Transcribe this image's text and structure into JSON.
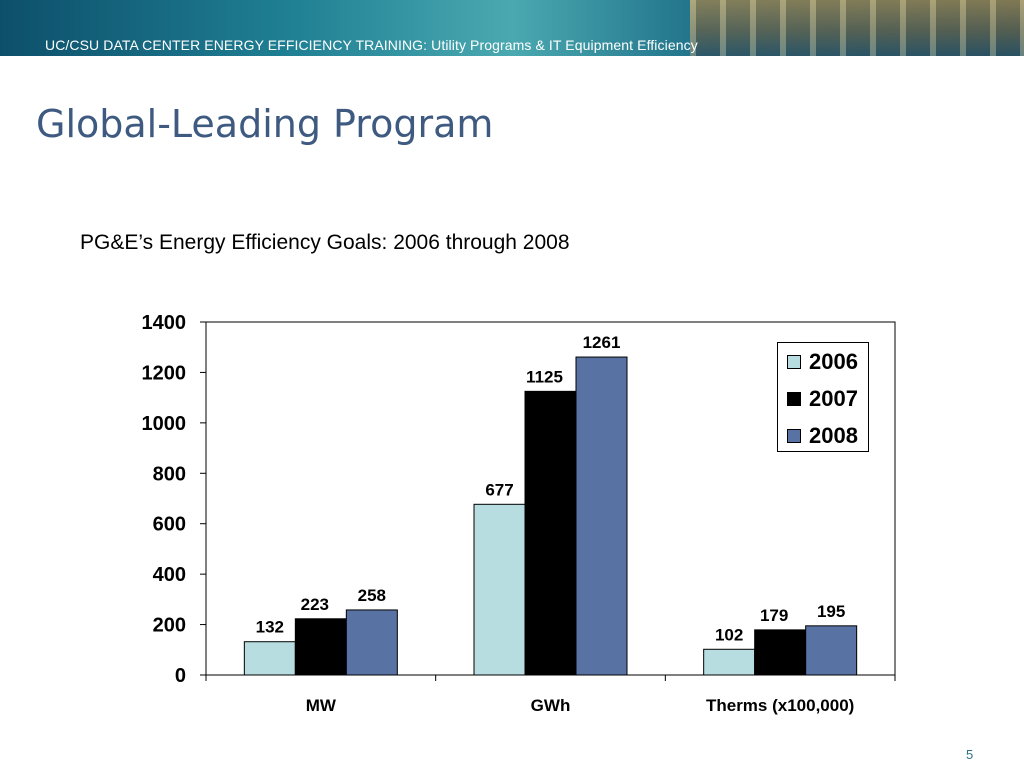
{
  "banner": {
    "text": "UC/CSU DATA CENTER ENERGY EFFICIENCY TRAINING: Utility Programs & IT Equipment Efficiency"
  },
  "slide": {
    "title": "Global-Leading Program",
    "page_number": "5"
  },
  "chart_heading": "PG&E’s Energy Efficiency Goals: 2006 through 2008",
  "colors": {
    "title": "#3e5a80",
    "series_2006": "#b8dde0",
    "series_2007": "#000000",
    "series_2008": "#5872a4"
  },
  "chart_data": {
    "type": "bar",
    "categories": [
      "MW",
      "GWh",
      "Therms (x100,000)"
    ],
    "series": [
      {
        "name": "2006",
        "values": [
          132,
          677,
          102
        ]
      },
      {
        "name": "2007",
        "values": [
          223,
          1125,
          179
        ]
      },
      {
        "name": "2008",
        "values": [
          258,
          1261,
          195
        ]
      }
    ],
    "ylim": [
      0,
      1400
    ],
    "yticks": [
      "0",
      "200",
      "400",
      "600",
      "800",
      "1000",
      "1200",
      "1400"
    ],
    "grid": false,
    "legend": "top-right",
    "data_labels": true
  }
}
